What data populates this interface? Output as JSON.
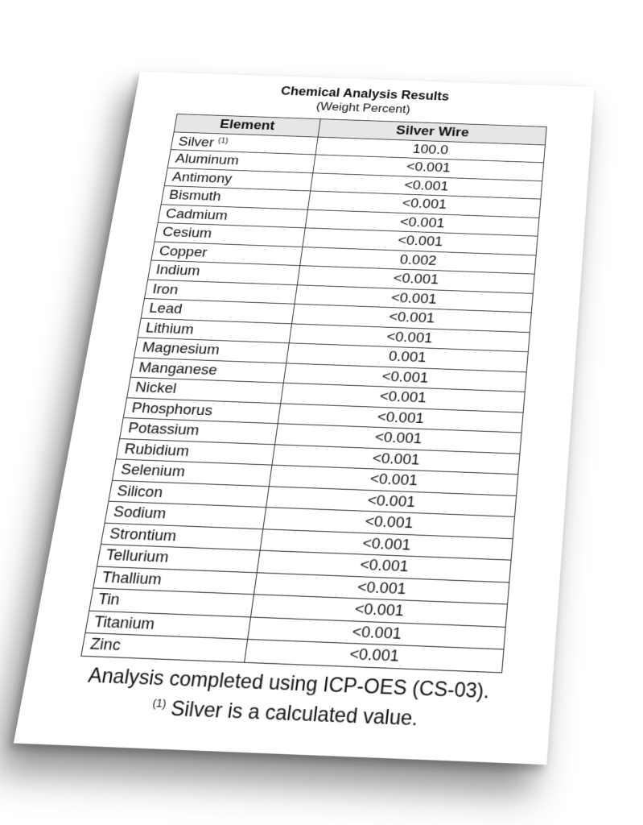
{
  "document": {
    "title": "Chemical Analysis Results",
    "subtitle": "(Weight Percent)",
    "table": {
      "headers": [
        "Element",
        "Silver Wire"
      ],
      "rows": [
        {
          "element": "Silver",
          "footnote": "(1)",
          "value": "100.0"
        },
        {
          "element": "Aluminum",
          "value": "<0.001"
        },
        {
          "element": "Antimony",
          "value": "<0.001"
        },
        {
          "element": "Bismuth",
          "value": "<0.001"
        },
        {
          "element": "Cadmium",
          "value": "<0.001"
        },
        {
          "element": "Cesium",
          "value": "<0.001"
        },
        {
          "element": "Copper",
          "value": "0.002"
        },
        {
          "element": "Indium",
          "value": "<0.001"
        },
        {
          "element": "Iron",
          "value": "<0.001"
        },
        {
          "element": "Lead",
          "value": "<0.001"
        },
        {
          "element": "Lithium",
          "value": "<0.001"
        },
        {
          "element": "Magnesium",
          "value": "0.001"
        },
        {
          "element": "Manganese",
          "value": "<0.001"
        },
        {
          "element": "Nickel",
          "value": "<0.001"
        },
        {
          "element": "Phosphorus",
          "value": "<0.001"
        },
        {
          "element": "Potassium",
          "value": "<0.001"
        },
        {
          "element": "Rubidium",
          "value": "<0.001"
        },
        {
          "element": "Selenium",
          "value": "<0.001"
        },
        {
          "element": "Silicon",
          "value": "<0.001"
        },
        {
          "element": "Sodium",
          "value": "<0.001"
        },
        {
          "element": "Strontium",
          "value": "<0.001"
        },
        {
          "element": "Tellurium",
          "value": "<0.001"
        },
        {
          "element": "Thallium",
          "value": "<0.001"
        },
        {
          "element": "Tin",
          "value": "<0.001"
        },
        {
          "element": "Titanium",
          "value": "<0.001"
        },
        {
          "element": "Zinc",
          "value": "<0.001"
        }
      ]
    },
    "note_line1": "Analysis completed using ICP-OES (CS-03).",
    "note_footnote_mark": "(1)",
    "note_line2": "Silver is a calculated value."
  }
}
